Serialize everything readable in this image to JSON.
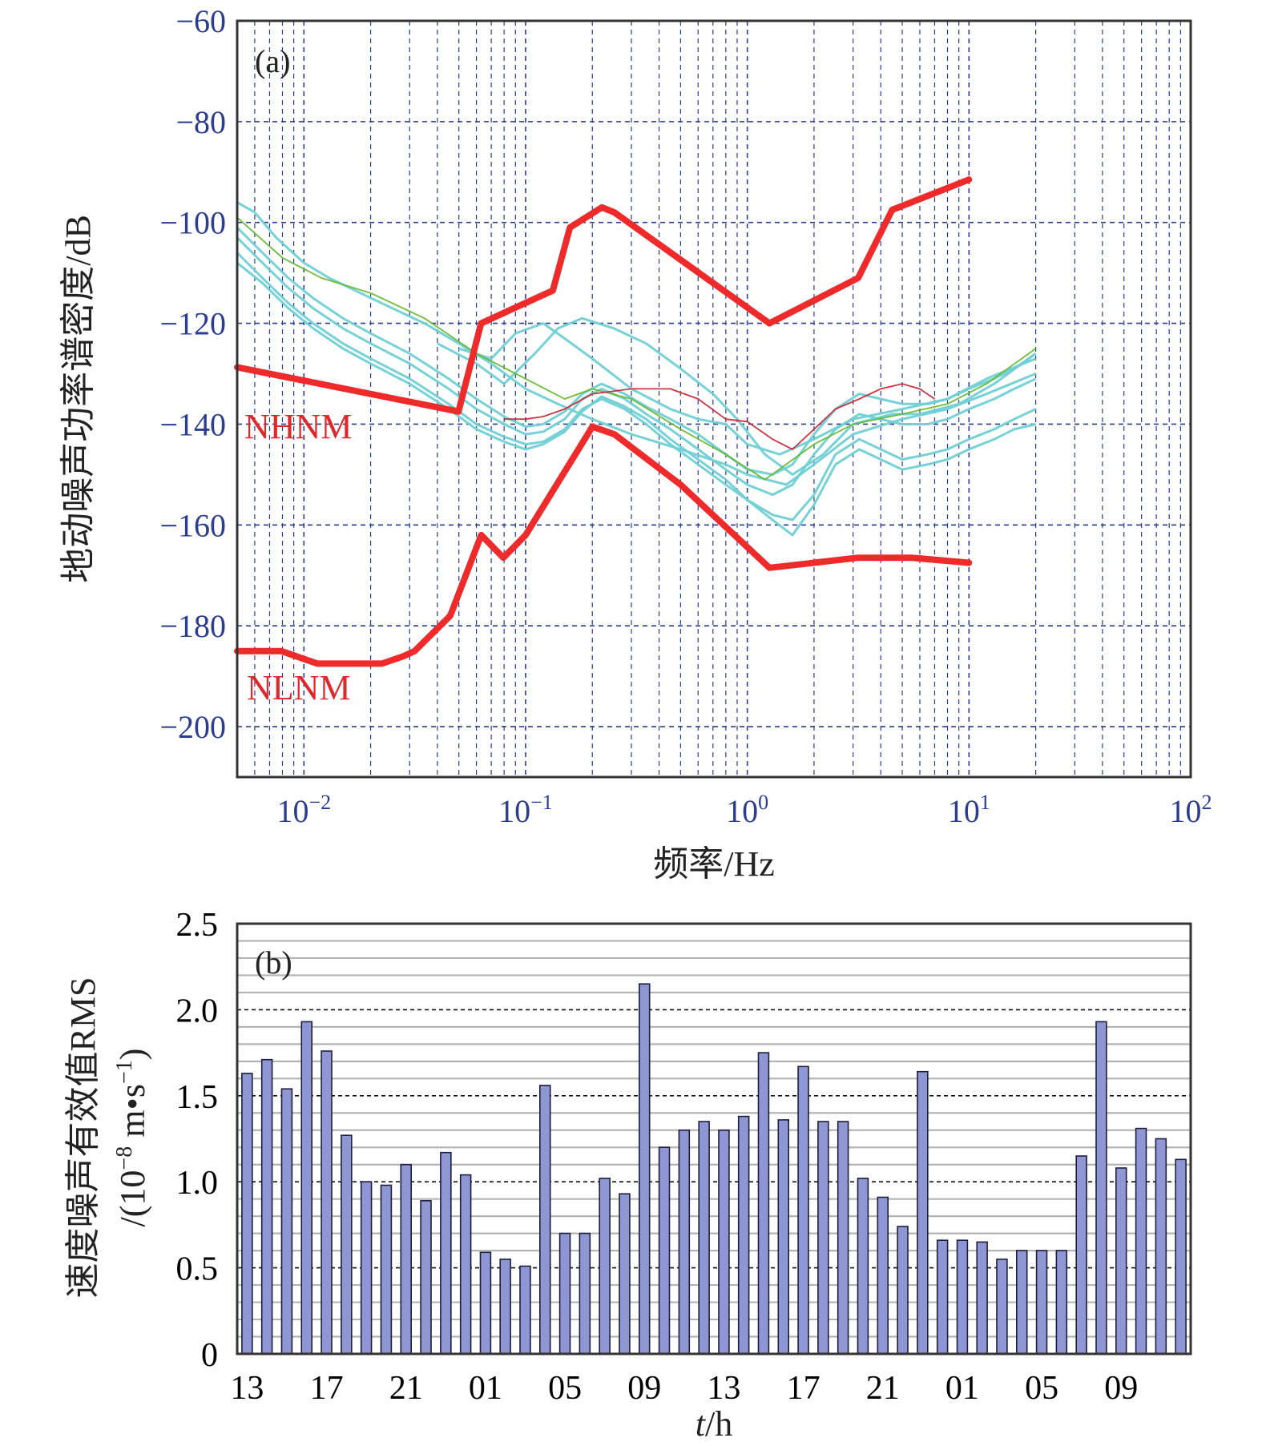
{
  "colors": {
    "psd_curves": "#6fd0d4",
    "noise_models": "#ee2a2a",
    "bars": "#8f96d4",
    "tick_text_a": "#2b3d8f",
    "grid_a": "#2b3d8f"
  },
  "chart_data": [
    {
      "type": "line",
      "panel_label": "(a)",
      "xlabel": "频率/Hz",
      "ylabel": "地动噪声功率谱密度/dB",
      "x_scale": "log",
      "xlim": [
        0.005,
        100
      ],
      "ylim": [
        -210,
        -60
      ],
      "x_ticks": [
        {
          "value": 0.01,
          "base": "10",
          "exp": "−2"
        },
        {
          "value": 0.1,
          "base": "10",
          "exp": "−1"
        },
        {
          "value": 1,
          "base": "10",
          "exp": "0"
        },
        {
          "value": 10,
          "base": "10",
          "exp": "1"
        },
        {
          "value": 100,
          "base": "10",
          "exp": "2"
        }
      ],
      "y_ticks": [
        {
          "value": -60,
          "label": "−60"
        },
        {
          "value": -80,
          "label": "−80"
        },
        {
          "value": -100,
          "label": "−100"
        },
        {
          "value": -120,
          "label": "−120"
        },
        {
          "value": -140,
          "label": "−140"
        },
        {
          "value": -160,
          "label": "−160"
        },
        {
          "value": -180,
          "label": "−180"
        },
        {
          "value": -200,
          "label": "−200"
        }
      ],
      "grid": "dashed, log minor",
      "series": [
        {
          "name": "NHNM",
          "color": "#ee2a2a",
          "x": [
            0.005,
            0.0498,
            0.063,
            0.0996,
            0.1326,
            0.1585,
            0.2208,
            0.2515,
            1.2589,
            3.1623,
            4.5,
            10
          ],
          "y": [
            -128.7,
            -137.5,
            -120,
            -116,
            -113.5,
            -101,
            -97,
            -98,
            -120,
            -111,
            -97.5,
            -91.5
          ]
        },
        {
          "name": "NLNM",
          "color": "#ee2a2a",
          "x": [
            0.005,
            0.0079,
            0.0115,
            0.0225,
            0.0282,
            0.0316,
            0.0457,
            0.0631,
            0.0794,
            0.1,
            0.2,
            0.2515,
            0.5,
            1.2589,
            3.1623,
            5.5,
            10
          ],
          "y": [
            -185,
            -185,
            -187.5,
            -187.5,
            -186,
            -185,
            -178,
            -162,
            -166.5,
            -162,
            -140.5,
            -142,
            -152,
            -168.5,
            -166.5,
            -166.5,
            -167.5
          ]
        },
        {
          "name": "",
          "color": "#6fd0d4",
          "x": [
            0.005,
            0.0065,
            0.0085,
            0.011,
            0.015,
            0.02,
            0.03,
            0.045,
            0.06,
            0.08,
            0.1,
            0.12,
            0.15,
            0.18,
            0.22,
            0.28,
            0.35,
            0.45,
            0.6,
            0.8,
            1.0,
            1.3,
            1.6,
            2.0,
            2.5,
            3.2,
            4.0,
            5.0,
            6.5,
            8.0,
            10,
            13,
            16,
            20
          ],
          "y": [
            -103,
            -108,
            -113,
            -117,
            -121,
            -124,
            -128,
            -133,
            -137,
            -140,
            -142,
            -141.5,
            -139,
            -135,
            -133,
            -135,
            -138,
            -141,
            -145,
            -149,
            -152,
            -154,
            -152,
            -146,
            -141,
            -138,
            -139,
            -140,
            -140,
            -139,
            -137,
            -135,
            -133,
            -131
          ]
        },
        {
          "name": "",
          "color": "#6fd0d4",
          "x": [
            0.005,
            0.0065,
            0.0085,
            0.011,
            0.015,
            0.02,
            0.03,
            0.045,
            0.06,
            0.08,
            0.1,
            0.12,
            0.15,
            0.18,
            0.22,
            0.28,
            0.35,
            0.45,
            0.6,
            0.8,
            1.0,
            1.3,
            1.6,
            2.0,
            2.5,
            3.2,
            4.0,
            5.0,
            6.5,
            8.0,
            10,
            13,
            16,
            20
          ],
          "y": [
            -106,
            -111,
            -116,
            -120,
            -124,
            -127,
            -131,
            -136,
            -140,
            -142.5,
            -144,
            -143.5,
            -141,
            -137,
            -135,
            -137,
            -140,
            -144,
            -148,
            -152,
            -155,
            -158,
            -159,
            -154,
            -146,
            -143,
            -145,
            -147,
            -146,
            -145,
            -143,
            -141,
            -139,
            -137
          ]
        },
        {
          "name": "",
          "color": "#6fd0d4",
          "x": [
            0.005,
            0.0065,
            0.0085,
            0.011,
            0.015,
            0.02,
            0.03,
            0.045,
            0.06,
            0.08,
            0.1,
            0.12,
            0.15,
            0.18,
            0.22,
            0.28,
            0.35,
            0.45,
            0.6,
            0.8,
            1.0,
            1.3,
            1.6,
            2.0,
            2.5,
            3.2,
            4.0,
            5.0,
            6.5,
            8.0,
            10,
            13,
            16,
            20
          ],
          "y": [
            -101,
            -106,
            -111,
            -115,
            -119,
            -122,
            -126,
            -131,
            -135,
            -138.5,
            -140.5,
            -140,
            -137.5,
            -134,
            -132,
            -134,
            -136.5,
            -139,
            -142,
            -146,
            -149,
            -150,
            -148,
            -142,
            -137,
            -134,
            -135,
            -136,
            -136,
            -135,
            -133,
            -131,
            -129,
            -126
          ]
        },
        {
          "name": "",
          "color": "#6fd0d4",
          "x": [
            0.005,
            0.0065,
            0.0085,
            0.011,
            0.015,
            0.02,
            0.03,
            0.045,
            0.06,
            0.08,
            0.1,
            0.12,
            0.15,
            0.18,
            0.22,
            0.28,
            0.35,
            0.45,
            0.6,
            0.8,
            1.0,
            1.3,
            1.6,
            2.0,
            2.5,
            3.2,
            4.0,
            5.0,
            6.5,
            8.0,
            10,
            13,
            16,
            20
          ],
          "y": [
            -108,
            -112,
            -117,
            -121,
            -125,
            -128,
            -132,
            -137,
            -141,
            -143.5,
            -145,
            -144,
            -141.5,
            -137.5,
            -134.5,
            -136.5,
            -139,
            -143,
            -147,
            -151,
            -155,
            -159,
            -162,
            -156,
            -148,
            -145,
            -147,
            -149,
            -148,
            -147,
            -145,
            -143,
            -141,
            -140
          ]
        },
        {
          "name": "",
          "color": "#6fd0d4",
          "x": [
            0.005,
            0.006,
            0.0075,
            0.01,
            0.013,
            0.018,
            0.025,
            0.035,
            0.05,
            0.07,
            0.1,
            0.14,
            0.2,
            0.3,
            0.5,
            0.8,
            1.0,
            1.5,
            2.0,
            3.0,
            5.0,
            8.0,
            12,
            20
          ],
          "y": [
            -96,
            -98,
            -103,
            -108,
            -111,
            -114,
            -117,
            -120,
            -124,
            -128,
            -133,
            -136,
            -139,
            -142,
            -145,
            -148,
            -150,
            -152,
            -148,
            -142,
            -139,
            -137,
            -134,
            -130
          ]
        },
        {
          "name": "",
          "color": "#6fd0d4",
          "x": [
            0.05,
            0.07,
            0.09,
            0.12,
            0.15,
            0.2,
            0.3,
            0.45,
            0.6,
            0.8,
            1.0,
            1.4,
            2.0,
            3.0,
            5.0,
            8.0,
            12,
            20
          ],
          "y": [
            -125,
            -127,
            -122,
            -120,
            -123,
            -127,
            -133,
            -137,
            -139,
            -140,
            -144,
            -146,
            -143,
            -139,
            -137,
            -135,
            -131,
            -127
          ]
        },
        {
          "name": "",
          "color": "#6fd0d4",
          "x": [
            0.04,
            0.06,
            0.08,
            0.11,
            0.14,
            0.18,
            0.25,
            0.35,
            0.5,
            0.7,
            0.9,
            1.2,
            1.6,
            2.2,
            3.0,
            4.5,
            6.0,
            9.0,
            13,
            20
          ],
          "y": [
            -124,
            -128,
            -132,
            -126,
            -121,
            -119,
            -121,
            -124,
            -129,
            -134,
            -139,
            -146,
            -150,
            -146,
            -140,
            -138,
            -138,
            -136,
            -132,
            -126
          ]
        },
        {
          "name": "",
          "color": "#66b82e",
          "x": [
            0.005,
            0.008,
            0.012,
            0.02,
            0.035,
            0.06,
            0.1,
            0.15,
            0.2,
            0.3,
            0.5,
            0.8,
            1.2,
            2.0,
            3.0,
            5.0,
            8.0,
            12,
            20
          ],
          "y": [
            -99,
            -107,
            -111,
            -114,
            -119,
            -126,
            -131,
            -135,
            -133,
            -135,
            -141,
            -146,
            -151,
            -144,
            -140,
            -138,
            -136,
            -132,
            -125
          ]
        },
        {
          "name": "",
          "color": "#c92a3a",
          "x": [
            0.08,
            0.1,
            0.12,
            0.15,
            0.2,
            0.3,
            0.45,
            0.6,
            0.8,
            1.0,
            1.3,
            1.6,
            2.0,
            2.5,
            3.2,
            4.0,
            5.0,
            6.0,
            7.0
          ],
          "y": [
            -139,
            -139,
            -138.5,
            -137,
            -134,
            -133,
            -133,
            -135,
            -139,
            -139.5,
            -143,
            -145,
            -141,
            -137,
            -135,
            -133,
            -132,
            -133,
            -135
          ]
        }
      ],
      "annotations": [
        {
          "text": "NHNM",
          "color": "#e0272b"
        },
        {
          "text": "NLNM",
          "color": "#e0272b"
        }
      ]
    },
    {
      "type": "bar",
      "panel_label": "(b)",
      "xlabel_italic": "t",
      "xlabel_rest": "/h",
      "ylabel_line1": "速度噪声有效值RMS",
      "ylabel_line2_pre": "/(10",
      "ylabel_line2_exp1": "−8",
      "ylabel_line2_mid": " m•s",
      "ylabel_line2_exp2": "−1",
      "ylabel_line2_post": ")",
      "ylim": [
        0,
        2.5
      ],
      "y_ticks": [
        "0",
        "0.5",
        "1.0",
        "1.5",
        "2.0",
        "2.5"
      ],
      "x_tick_labels": [
        "13",
        "17",
        "21",
        "01",
        "05",
        "09",
        "13",
        "17",
        "21",
        "01",
        "05",
        "09"
      ],
      "values": [
        1.63,
        1.71,
        1.54,
        1.93,
        1.76,
        1.27,
        1.0,
        0.98,
        1.1,
        0.89,
        1.17,
        1.04,
        0.59,
        0.55,
        0.51,
        1.56,
        0.7,
        0.7,
        1.02,
        0.93,
        2.15,
        1.2,
        1.3,
        1.35,
        1.3,
        1.38,
        1.75,
        1.36,
        1.67,
        1.35,
        1.35,
        1.02,
        0.91,
        0.74,
        1.64,
        0.66,
        0.66,
        0.65,
        0.55,
        0.6,
        0.6,
        0.6,
        1.15,
        1.93,
        1.08,
        1.31,
        1.25,
        1.13
      ],
      "grid": "horizontal solid minor, dashed major",
      "color": "#8f96d4"
    }
  ]
}
